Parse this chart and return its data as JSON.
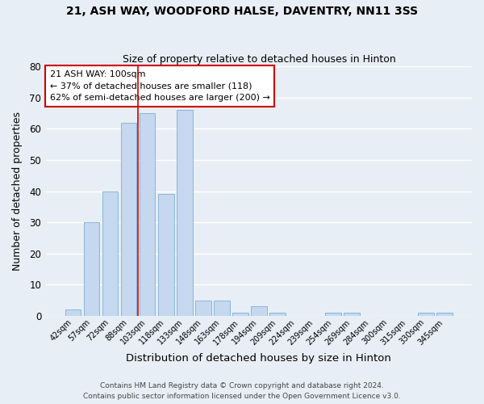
{
  "title1": "21, ASH WAY, WOODFORD HALSE, DAVENTRY, NN11 3SS",
  "title2": "Size of property relative to detached houses in Hinton",
  "xlabel": "Distribution of detached houses by size in Hinton",
  "ylabel": "Number of detached properties",
  "bar_labels": [
    "42sqm",
    "57sqm",
    "72sqm",
    "88sqm",
    "103sqm",
    "118sqm",
    "133sqm",
    "148sqm",
    "163sqm",
    "178sqm",
    "194sqm",
    "209sqm",
    "224sqm",
    "239sqm",
    "254sqm",
    "269sqm",
    "284sqm",
    "300sqm",
    "315sqm",
    "330sqm",
    "345sqm"
  ],
  "bar_values": [
    2,
    30,
    40,
    62,
    65,
    39,
    66,
    5,
    5,
    1,
    3,
    1,
    0,
    0,
    1,
    1,
    0,
    0,
    0,
    1,
    1
  ],
  "bar_color": "#c5d8f0",
  "bar_edge_color": "#7bafd4",
  "bg_color": "#e8eef5",
  "grid_color": "#ffffff",
  "vline_color": "#cc0000",
  "vline_pos": 3.5,
  "annotation_lines": [
    "21 ASH WAY: 100sqm",
    "← 37% of detached houses are smaller (118)",
    "62% of semi-detached houses are larger (200) →"
  ],
  "annotation_box_color": "#ffffff",
  "annotation_box_edge": "#cc0000",
  "ylim": [
    0,
    80
  ],
  "yticks": [
    0,
    10,
    20,
    30,
    40,
    50,
    60,
    70,
    80
  ],
  "footer1": "Contains HM Land Registry data © Crown copyright and database right 2024.",
  "footer2": "Contains public sector information licensed under the Open Government Licence v3.0."
}
